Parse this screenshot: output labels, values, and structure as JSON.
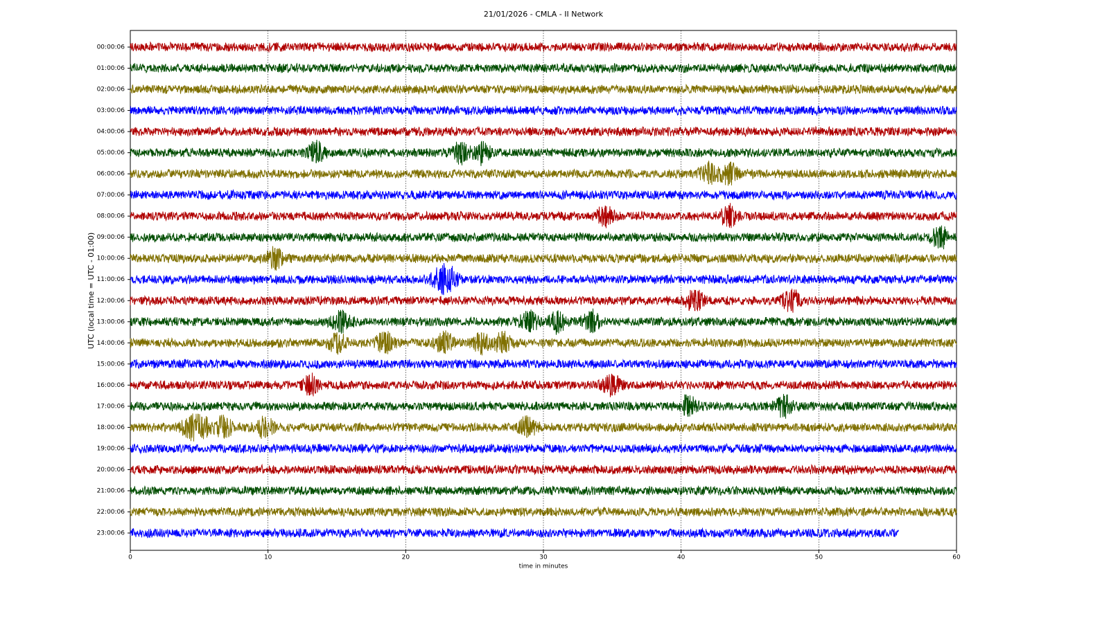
{
  "chart_data": {
    "type": "helicorder",
    "title": "21/01/2026 - CMLA - II Network",
    "xlabel": "time in minutes",
    "ylabel": "UTC (local time = UTC - 01:00)",
    "xlim": [
      0,
      60
    ],
    "xticks": [
      0,
      10,
      20,
      30,
      40,
      50,
      60
    ],
    "grid": true,
    "series": [
      {
        "name": "00:00:06",
        "color": "#b00000",
        "x": [
          0,
          60
        ],
        "bursts": []
      },
      {
        "name": "01:00:06",
        "color": "#004d00",
        "x": [
          0,
          60
        ],
        "bursts": []
      },
      {
        "name": "02:00:06",
        "color": "#807000",
        "x": [
          0,
          60
        ],
        "bursts": []
      },
      {
        "name": "03:00:06",
        "color": "#0000ff",
        "x": [
          0,
          60
        ],
        "bursts": []
      },
      {
        "name": "04:00:06",
        "color": "#b00000",
        "x": [
          0,
          60
        ],
        "bursts": []
      },
      {
        "name": "05:00:06",
        "color": "#004d00",
        "x": [
          0,
          60
        ],
        "bursts": [
          13.5,
          24,
          25.5
        ]
      },
      {
        "name": "06:00:06",
        "color": "#807000",
        "x": [
          0,
          60
        ],
        "bursts": [
          42,
          43.5
        ]
      },
      {
        "name": "07:00:06",
        "color": "#0000ff",
        "x": [
          0,
          60
        ],
        "bursts": []
      },
      {
        "name": "08:00:06",
        "color": "#b00000",
        "x": [
          0,
          60
        ],
        "bursts": [
          34.5,
          43.5
        ]
      },
      {
        "name": "09:00:06",
        "color": "#004d00",
        "x": [
          0,
          60
        ],
        "bursts": [
          58.8
        ]
      },
      {
        "name": "10:00:06",
        "color": "#807000",
        "x": [
          0,
          60
        ],
        "bursts": [
          10.5
        ]
      },
      {
        "name": "11:00:06",
        "color": "#0000ff",
        "x": [
          0,
          60
        ],
        "bursts": [
          22.5,
          23.2
        ]
      },
      {
        "name": "12:00:06",
        "color": "#b00000",
        "x": [
          0,
          60
        ],
        "bursts": [
          41,
          48
        ]
      },
      {
        "name": "13:00:06",
        "color": "#004d00",
        "x": [
          0,
          60
        ],
        "bursts": [
          15.3,
          29,
          31,
          33.5
        ]
      },
      {
        "name": "14:00:06",
        "color": "#807000",
        "x": [
          0,
          60
        ],
        "bursts": [
          15,
          18.5,
          22.8,
          25.5,
          27
        ]
      },
      {
        "name": "15:00:06",
        "color": "#0000ff",
        "x": [
          0,
          60
        ],
        "bursts": []
      },
      {
        "name": "16:00:06",
        "color": "#b00000",
        "x": [
          0,
          60
        ],
        "bursts": [
          13,
          35
        ]
      },
      {
        "name": "17:00:06",
        "color": "#004d00",
        "x": [
          0,
          60
        ],
        "bursts": [
          40.5,
          47.5
        ]
      },
      {
        "name": "18:00:06",
        "color": "#807000",
        "x": [
          0,
          60
        ],
        "bursts": [
          4.3,
          5.2,
          6.8,
          9.8,
          28.8
        ]
      },
      {
        "name": "19:00:06",
        "color": "#0000ff",
        "x": [
          0,
          60
        ],
        "bursts": []
      },
      {
        "name": "20:00:06",
        "color": "#b00000",
        "x": [
          0,
          60
        ],
        "bursts": []
      },
      {
        "name": "21:00:06",
        "color": "#004d00",
        "x": [
          0,
          60
        ],
        "bursts": []
      },
      {
        "name": "22:00:06",
        "color": "#807000",
        "x": [
          0,
          60
        ],
        "bursts": []
      },
      {
        "name": "23:00:06",
        "color": "#0000ff",
        "x": [
          0,
          55.8
        ],
        "bursts": []
      }
    ]
  }
}
